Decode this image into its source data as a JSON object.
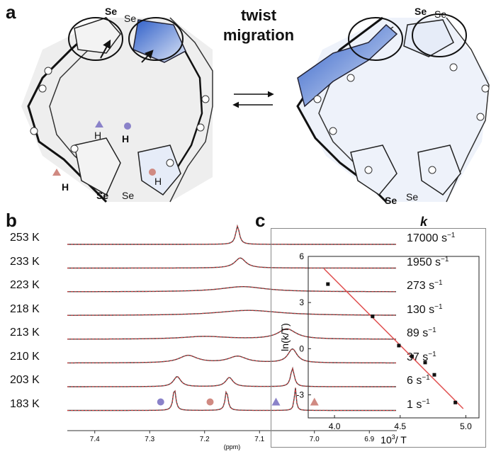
{
  "panel_a": {
    "label": "a",
    "arrow_text": "twist migration",
    "se_label": "Se",
    "h_label": "H"
  },
  "panel_b": {
    "label": "b",
    "k_header": "k",
    "rows": [
      {
        "temp": "253 K",
        "k": "17000 s",
        "exp": "−1"
      },
      {
        "temp": "233 K",
        "k": "1950 s",
        "exp": "−1"
      },
      {
        "temp": "223 K",
        "k": "273 s",
        "exp": "−1"
      },
      {
        "temp": "218 K",
        "k": "130 s",
        "exp": "−1"
      },
      {
        "temp": "213 K",
        "k": "89 s",
        "exp": "−1"
      },
      {
        "temp": "210 K",
        "k": "37 s",
        "exp": "−1"
      },
      {
        "temp": "203 K",
        "k": "6 s",
        "exp": "−1"
      },
      {
        "temp": "183 K",
        "k": "1 s",
        "exp": "−1"
      }
    ],
    "x_ticks": [
      "7.4",
      "7.3",
      "7.2",
      "7.1",
      "7.0",
      "6.9"
    ],
    "x_unit": "(ppm)",
    "colors": {
      "red": "#d8383a",
      "dark": "#444444",
      "purple": "#8a82c9",
      "pink": "#d08a82"
    }
  },
  "panel_c": {
    "label": "c"
  },
  "chart_data": {
    "type": "scatter",
    "title": "",
    "xlabel": "10^3/ T",
    "ylabel": "ln(k/T)",
    "x": [
      3.95,
      4.29,
      4.49,
      4.59,
      4.69,
      4.76,
      4.92
    ],
    "y": [
      4.2,
      2.1,
      0.2,
      -0.5,
      -0.9,
      -1.7,
      -3.5
    ],
    "fit": {
      "x": [
        3.92,
        4.98
      ],
      "y": [
        5.2,
        -3.9
      ],
      "color": "#e05050"
    },
    "xlim": [
      3.8,
      5.1
    ],
    "ylim": [
      -4.5,
      6.0
    ],
    "x_ticks": [
      4.0,
      4.5,
      5.0
    ],
    "x_tick_labels": [
      "4.0",
      "4.5",
      "5.0"
    ],
    "y_ticks": [
      -3,
      0,
      3,
      6
    ],
    "y_tick_labels": [
      "-3",
      "0",
      "3",
      "6"
    ]
  }
}
